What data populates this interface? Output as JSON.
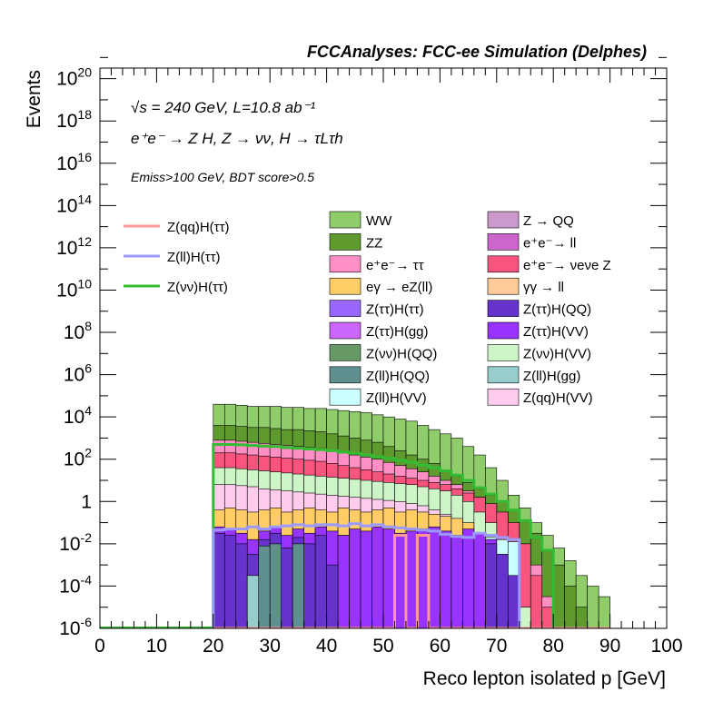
{
  "chart_data": {
    "type": "area",
    "title": "FCCAnalyses: FCC-ee Simulation (Delphes)",
    "xlabel": "Reco lepton isolated p [GeV]",
    "ylabel": "Events",
    "xlim": [
      0,
      100
    ],
    "ylim_log10": [
      -6,
      20.5
    ],
    "log_scale_y": true,
    "x_ticks": [
      "0",
      "10",
      "20",
      "30",
      "40",
      "50",
      "60",
      "70",
      "80",
      "90",
      "100"
    ],
    "y_ticks": [
      {
        "base": "10",
        "exp": "-6",
        "v": -6
      },
      {
        "base": "10",
        "exp": "-4",
        "v": -4
      },
      {
        "base": "10",
        "exp": "-2",
        "v": -2
      },
      {
        "base": "1",
        "exp": "",
        "v": 0
      },
      {
        "base": "10",
        "exp": "2",
        "v": 2
      },
      {
        "base": "10",
        "exp": "4",
        "v": 4
      },
      {
        "base": "10",
        "exp": "6",
        "v": 6
      },
      {
        "base": "10",
        "exp": "8",
        "v": 8
      },
      {
        "base": "10",
        "exp": "10",
        "v": 10
      },
      {
        "base": "10",
        "exp": "12",
        "v": 12
      },
      {
        "base": "10",
        "exp": "14",
        "v": 14
      },
      {
        "base": "10",
        "exp": "16",
        "v": 16
      },
      {
        "base": "10",
        "exp": "18",
        "v": 18
      },
      {
        "base": "10",
        "exp": "20",
        "v": 20
      }
    ],
    "annotations": [
      "√s = 240 GeV, L=10.8 ab⁻¹",
      "e⁺e⁻ → Z H, Z → νν, H → τLτh",
      "Emiss>100 GeV, BDT score>0.5"
    ],
    "bin_edges_start": 20,
    "bin_width": 2,
    "stack_order": [
      "ZZ-proxy",
      "WW"
    ],
    "stack": [
      {
        "name": "WW",
        "color": "#8fcd6b",
        "log10_top": [
          4.6,
          4.6,
          4.55,
          4.5,
          4.5,
          4.5,
          4.45,
          4.45,
          4.4,
          4.4,
          4.35,
          4.3,
          4.25,
          4.2,
          4.1,
          4.0,
          3.9,
          3.8,
          3.6,
          3.4,
          3.2,
          3.0,
          2.6,
          2.2,
          1.6,
          1.0,
          0.3,
          -0.3,
          -1.0,
          -1.6,
          -2.2,
          -2.8,
          -3.5,
          -4.0,
          -4.5
        ]
      },
      {
        "name": "ZZ",
        "color": "#5e9a2d",
        "log10_top": [
          3.6,
          3.6,
          3.55,
          3.5,
          3.5,
          3.45,
          3.4,
          3.4,
          3.35,
          3.3,
          3.2,
          3.1,
          3.0,
          2.9,
          2.8,
          2.6,
          2.4,
          2.2,
          2.0,
          1.8,
          1.5,
          1.2,
          0.9,
          0.6,
          0.3,
          0.0,
          -0.4,
          -0.9,
          -1.5,
          -2.3,
          -3.0,
          -4.0,
          -5.0,
          -6,
          -6
        ]
      },
      {
        "name": "e+e- → ττ",
        "color": "#ff8fc4",
        "log10_top": [
          2.9,
          2.9,
          2.85,
          2.8,
          2.75,
          2.7,
          2.65,
          2.6,
          2.55,
          2.5,
          2.4,
          2.3,
          2.2,
          2.1,
          2.0,
          1.85,
          1.7,
          1.55,
          1.4,
          1.2,
          1.0,
          0.8,
          0.5,
          0.2,
          -0.2,
          -0.6,
          -1.2,
          -2.0,
          -3.0,
          -4.5,
          -6,
          -6,
          -6,
          -6,
          -6
        ]
      },
      {
        "name": "e+e- → νeνe Z",
        "color": "#f7557e",
        "log10_top": [
          2.3,
          2.3,
          2.25,
          2.2,
          2.15,
          2.1,
          2.05,
          2.0,
          1.95,
          1.9,
          1.8,
          1.7,
          1.6,
          1.5,
          1.4,
          1.3,
          1.2,
          1.1,
          1.0,
          0.9,
          0.8,
          0.6,
          0.4,
          0.2,
          -0.1,
          -0.5,
          -1.0,
          -2.0,
          -3.5,
          -5.0,
          -6,
          -6,
          -6,
          -6,
          -6
        ]
      },
      {
        "name": "Z(νν)H(VV)",
        "color": "#cdf5c8",
        "log10_top": [
          1.6,
          1.6,
          1.55,
          1.5,
          1.45,
          1.4,
          1.35,
          1.3,
          1.25,
          1.2,
          1.15,
          1.1,
          1.05,
          1.0,
          0.95,
          0.9,
          0.85,
          0.8,
          0.7,
          0.6,
          0.5,
          0.3,
          0.0,
          -0.5,
          -1.0,
          -2.0,
          -3.5,
          -5.0,
          -6,
          -6,
          -6,
          -6,
          -6,
          -6,
          -6
        ]
      },
      {
        "name": "Z(qq)H(VV)",
        "color": "#ffccee",
        "log10_top": [
          0.8,
          0.8,
          0.75,
          0.7,
          0.6,
          0.55,
          0.5,
          0.45,
          0.4,
          0.35,
          0.3,
          0.25,
          0.2,
          0.15,
          0.1,
          0.05,
          0.0,
          -0.1,
          -0.2,
          -0.4,
          -0.6,
          -0.9,
          -1.3,
          -1.8,
          -2.5,
          -3.5,
          -5.0,
          -6,
          -6,
          -6,
          -6,
          -6,
          -6,
          -6,
          -6
        ]
      },
      {
        "name": "eγ → eZ(ll)",
        "color": "#ffcc66",
        "log10_top": [
          -0.4,
          -0.3,
          -0.4,
          -0.5,
          -0.4,
          -0.3,
          -0.5,
          -0.4,
          -0.3,
          -0.4,
          -0.5,
          -0.3,
          -0.4,
          -0.5,
          -0.4,
          -0.3,
          -0.5,
          -0.4,
          -0.5,
          -0.6,
          -0.7,
          -0.8,
          -1.0,
          -1.5,
          -2.5,
          -4.0,
          -6,
          -6,
          -6,
          -6,
          -6,
          -6,
          -6,
          -6,
          -6
        ]
      },
      {
        "name": "Z(ll)H(VV)",
        "color": "#ccffff",
        "log10_top": [
          -6,
          -6,
          -6,
          -6,
          -6,
          -6,
          -6,
          -6,
          -6,
          -6,
          -6,
          -1.6,
          -1.6,
          -1.6,
          -1.6,
          -1.6,
          -1.6,
          -1.6,
          -1.6,
          -1.6,
          -1.6,
          -1.6,
          -1.6,
          -1.6,
          -1.7,
          -1.8,
          -1.9,
          -6,
          -6,
          -6,
          -6,
          -6,
          -6,
          -6,
          -6
        ]
      },
      {
        "name": "Z(ττ)H(VV)",
        "color": "#9933ff",
        "log10_top": [
          -1.2,
          -1.3,
          -1.5,
          -1.8,
          -1.4,
          -1.2,
          -1.6,
          -1.3,
          -1.5,
          -1.2,
          -1.4,
          -1.6,
          -1.3,
          -1.4,
          -1.2,
          -1.3,
          -1.5,
          -1.4,
          -1.3,
          -1.2,
          -1.4,
          -1.6,
          -1.3,
          -1.5,
          -1.8,
          -2.5,
          -4.0,
          -6,
          -6,
          -6,
          -6,
          -6,
          -6,
          -6,
          -6
        ]
      },
      {
        "name": "Z(ττ)H(QQ)",
        "color": "#6633cc",
        "log10_top": [
          -1.5,
          -1.6,
          -2.0,
          -2.5,
          -1.8,
          -1.5,
          -2.2,
          -1.7,
          -2.0,
          -1.6,
          -3.0,
          -6,
          -6,
          -6,
          -6,
          -6,
          -6,
          -6,
          -6,
          -6,
          -6,
          -6,
          -6,
          -6,
          -2.0,
          -2.5,
          -3.5,
          -6,
          -6,
          -6,
          -6,
          -6,
          -6,
          -6,
          -6
        ]
      },
      {
        "name": "Z(ll)H(QQ)",
        "color": "#5f8f8f",
        "log10_top": [
          -6,
          -6,
          -6,
          -6,
          -2.1,
          -2.0,
          -6,
          -2.0,
          -6,
          -6,
          -6,
          -6,
          -6,
          -6,
          -6,
          -6,
          -6,
          -6,
          -6,
          -6,
          -6,
          -6,
          -6,
          -6,
          -6,
          -6,
          -6,
          -6,
          -6,
          -6,
          -6,
          -6,
          -6,
          -6,
          -6
        ]
      },
      {
        "name": "Z(ll)H(gg)",
        "color": "#99cccc",
        "log10_top": [
          -6,
          -6,
          -6,
          -3.5,
          -6,
          -6,
          -6,
          -6,
          -6,
          -6,
          -6,
          -6,
          -6,
          -6,
          -6,
          -6,
          -6,
          -6,
          -6,
          -6,
          -6,
          -6,
          -6,
          -6,
          -6,
          -6,
          -6,
          -6,
          -6,
          -6,
          -6,
          -6,
          -6,
          -6,
          -6
        ]
      }
    ],
    "lines": [
      {
        "name": "Z(νν)H(ττ)",
        "color": "#33bb33",
        "log10": [
          2.7,
          2.7,
          2.68,
          2.65,
          2.62,
          2.6,
          2.55,
          2.52,
          2.48,
          2.45,
          2.4,
          2.33,
          2.28,
          2.2,
          2.12,
          2.05,
          1.95,
          1.85,
          1.72,
          1.6,
          1.45,
          1.25,
          1.0,
          0.65,
          0.35,
          0.0,
          -0.4,
          -0.9,
          -1.7,
          -2.3,
          -6,
          -6,
          -6,
          -6,
          -6
        ]
      },
      {
        "name": "Z(ll)H(ττ)",
        "color": "#9999ff",
        "log10": [
          -1.35,
          -1.3,
          -1.3,
          -1.2,
          -1.3,
          -1.2,
          -1.15,
          -1.1,
          -1.15,
          -1.1,
          -1.1,
          -1.15,
          -1.05,
          -1.15,
          -1.1,
          -1.2,
          -1.25,
          -1.3,
          -1.35,
          -1.4,
          -1.55,
          -1.65,
          -1.7,
          -1.5,
          -1.6,
          -1.7,
          -1.8,
          -6,
          -6,
          -6,
          -6,
          -6,
          -6,
          -6,
          -6
        ]
      },
      {
        "name": "Z(qq)H(ττ)",
        "color": "#ff9999",
        "log10": [
          -6,
          -6,
          -6,
          -6,
          -6,
          -6,
          -6,
          -6,
          -6,
          -6,
          -6,
          -6,
          -6,
          -6,
          -6,
          -6,
          -1.6,
          -6,
          -1.6,
          -6,
          -6,
          -6,
          -6,
          -6,
          -6,
          -6,
          -6,
          -6,
          -6,
          -6,
          -6,
          -6,
          -6,
          -6,
          -6
        ]
      }
    ],
    "legend": {
      "lines": [
        {
          "label": "Z(qq)H(ττ)",
          "color": "#ff9999"
        },
        {
          "label": "Z(ll)H(ττ)",
          "color": "#9999ff"
        },
        {
          "label": "Z(νν)H(ττ)",
          "color": "#33bb33"
        }
      ],
      "boxes_col1": [
        {
          "label": "WW",
          "color": "#8fcd6b"
        },
        {
          "label": "ZZ",
          "color": "#5e9a2d"
        },
        {
          "label": "e⁺e⁻→ ττ",
          "color": "#ff8fc4"
        },
        {
          "label": "eγ → eZ(ll)",
          "color": "#ffcc66"
        },
        {
          "label": "Z(ττ)H(ττ)",
          "color": "#9966ff"
        },
        {
          "label": "Z(ττ)H(gg)",
          "color": "#cc66ff"
        },
        {
          "label": "Z(νν)H(QQ)",
          "color": "#669966"
        },
        {
          "label": "Z(ll)H(QQ)",
          "color": "#5f8f8f"
        },
        {
          "label": "Z(ll)H(VV)",
          "color": "#ccffff"
        }
      ],
      "boxes_col2": [
        {
          "label": "Z → QQ",
          "color": "#cc99cc"
        },
        {
          "label": "e⁺e⁻→ ll",
          "color": "#cc66cc"
        },
        {
          "label": "e⁺e⁻→ νeνe Z",
          "color": "#f7557e"
        },
        {
          "label": "γγ → ll",
          "color": "#ffcc99"
        },
        {
          "label": "Z(ττ)H(QQ)",
          "color": "#6633cc"
        },
        {
          "label": "Z(ττ)H(VV)",
          "color": "#9933ff"
        },
        {
          "label": "Z(νν)H(VV)",
          "color": "#cdf5c8"
        },
        {
          "label": "Z(ll)H(gg)",
          "color": "#99cccc"
        },
        {
          "label": "Z(qq)H(VV)",
          "color": "#ffccee"
        }
      ]
    }
  }
}
